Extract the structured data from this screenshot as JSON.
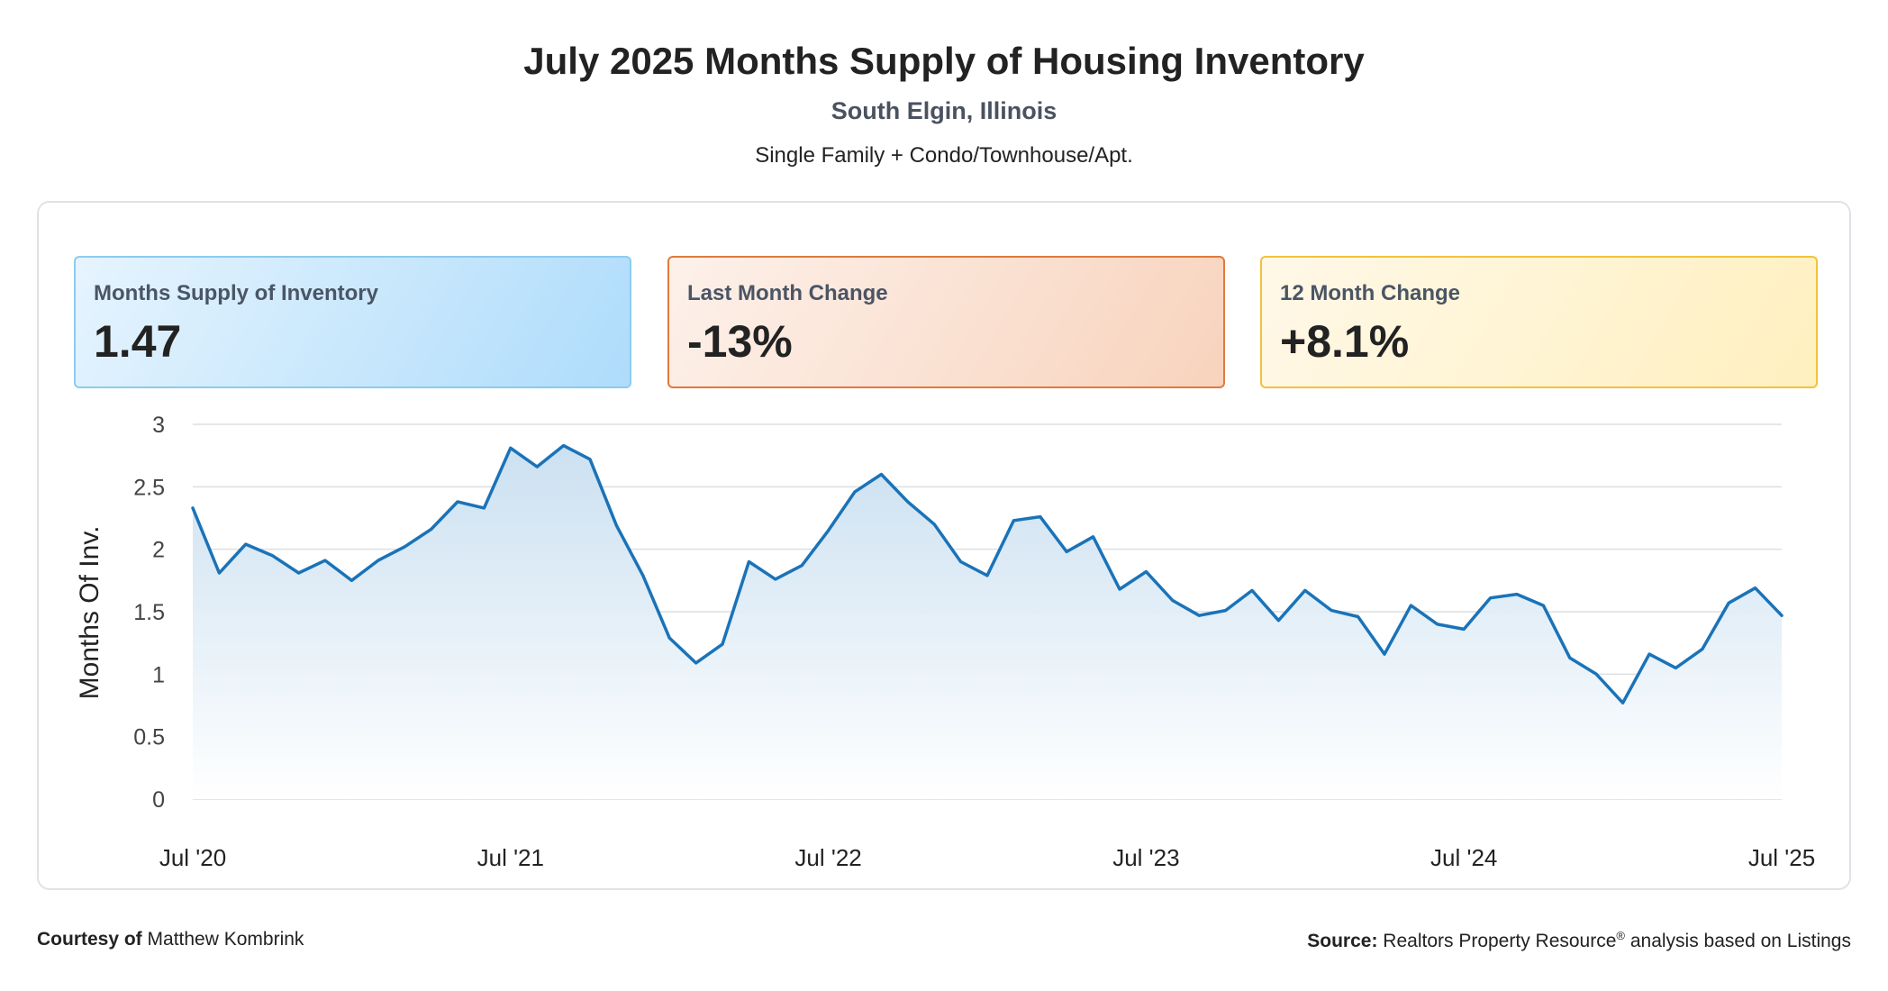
{
  "header": {
    "title": "July 2025 Months Supply of Housing Inventory",
    "location": "South Elgin, Illinois",
    "segment": "Single Family + Condo/Townhouse/Apt."
  },
  "cards": {
    "supply": {
      "label": "Months Supply of Inventory",
      "value": "1.47"
    },
    "last_month": {
      "label": "Last Month Change",
      "value": "-13%"
    },
    "twelve_month": {
      "label": "12 Month Change",
      "value": "+8.1%"
    }
  },
  "footer": {
    "courtesy_label": "Courtesy of",
    "courtesy_name": "Matthew Kombrink",
    "source_label": "Source:",
    "source_text_1": "Realtors Property Resource",
    "source_reg": "®",
    "source_text_2": " analysis based on Listings"
  },
  "colors": {
    "line": "#1a73b8",
    "fill_top": "#c9dff0",
    "grid": "#dcdfe3"
  },
  "chart_data": {
    "type": "area",
    "title": "July 2025 Months Supply of Housing Inventory",
    "ylabel": "Months Of Inv.",
    "xlabel": "",
    "ylim": [
      0,
      3
    ],
    "yticks": [
      "0",
      "0.5",
      "1",
      "1.5",
      "2",
      "2.5",
      "3"
    ],
    "xtick_labels": [
      "Jul '20",
      "Jul '21",
      "Jul '22",
      "Jul '23",
      "Jul '24",
      "Jul '25"
    ],
    "xtick_indices": [
      0,
      12,
      24,
      36,
      48,
      60
    ],
    "grid": true,
    "series": [
      {
        "name": "Months Supply of Inventory",
        "start": "Jul 2020",
        "end": "Jul 2025",
        "values": [
          2.33,
          1.81,
          2.04,
          1.95,
          1.81,
          1.91,
          1.75,
          1.91,
          2.02,
          2.16,
          2.38,
          2.33,
          2.81,
          2.66,
          2.83,
          2.72,
          2.19,
          1.79,
          1.29,
          1.09,
          1.24,
          1.9,
          1.76,
          1.87,
          2.15,
          2.46,
          2.6,
          2.38,
          2.2,
          1.9,
          1.79,
          2.23,
          2.26,
          1.98,
          2.1,
          1.68,
          1.82,
          1.59,
          1.47,
          1.51,
          1.67,
          1.43,
          1.67,
          1.51,
          1.46,
          1.16,
          1.55,
          1.4,
          1.36,
          1.61,
          1.64,
          1.55,
          1.13,
          1.0,
          0.77,
          1.16,
          1.05,
          1.2,
          1.57,
          1.69,
          1.47
        ]
      }
    ]
  }
}
